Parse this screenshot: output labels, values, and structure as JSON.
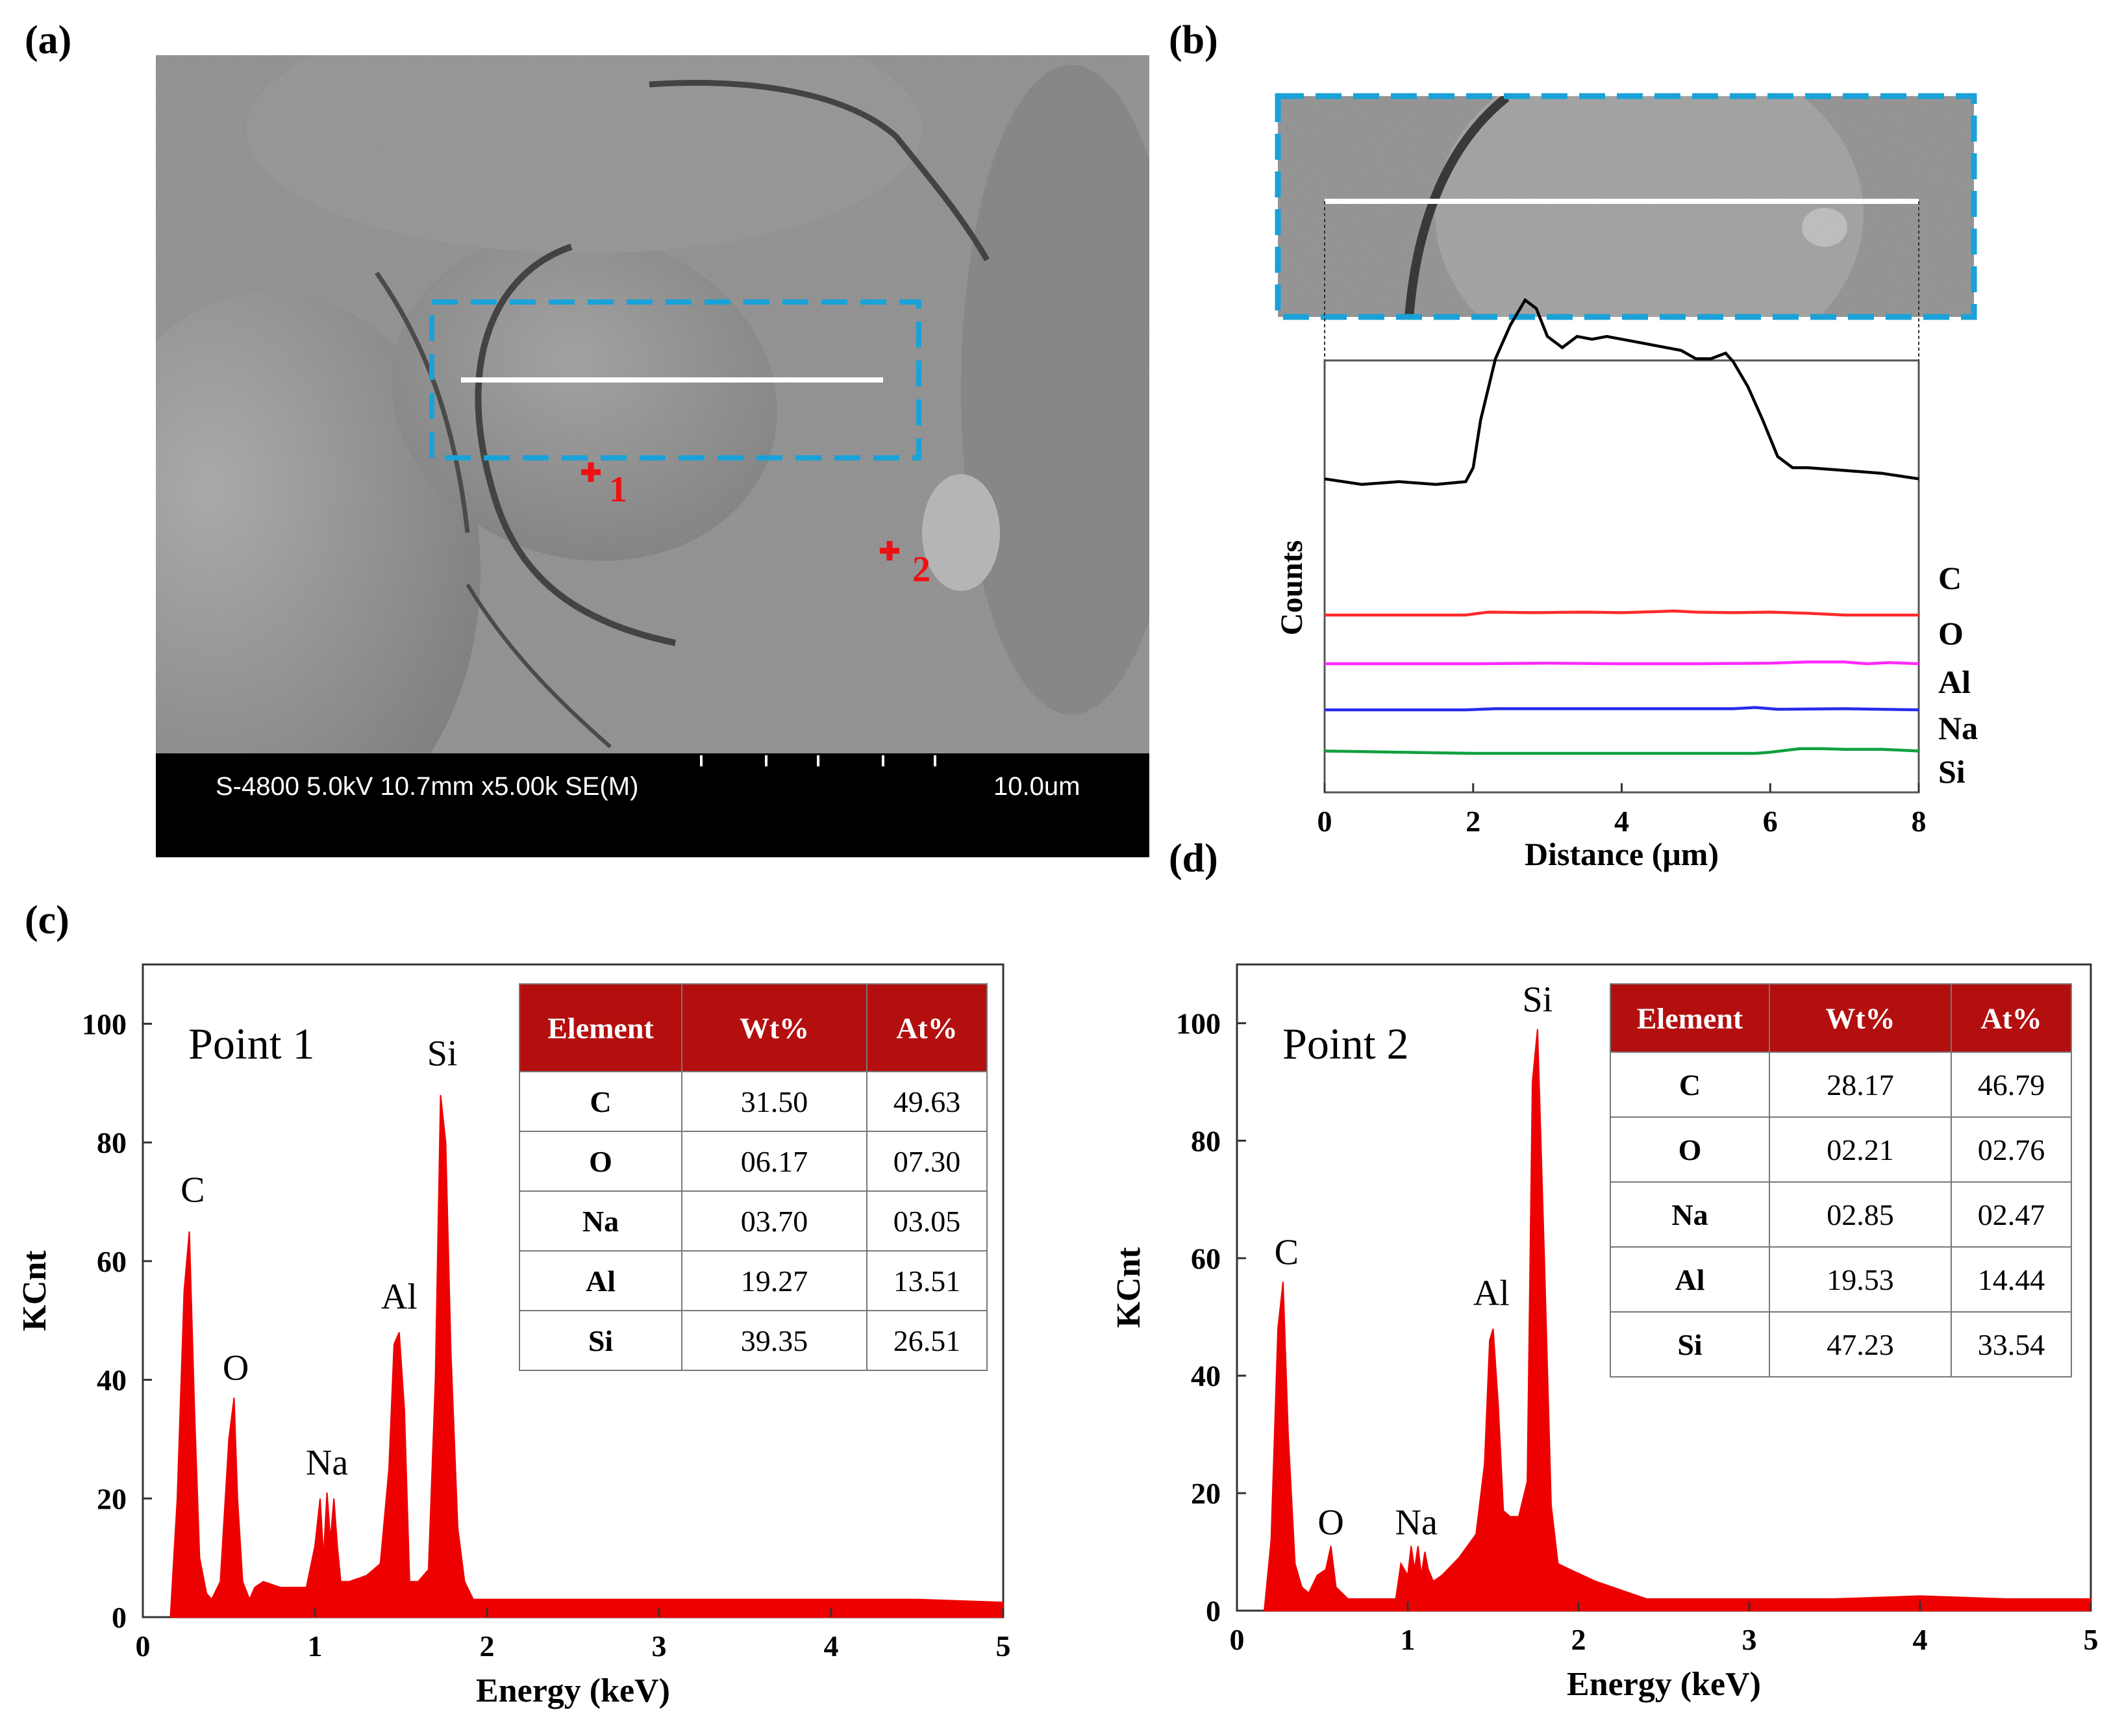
{
  "panels": {
    "a": {
      "label": "(a)",
      "sem_info": "S-4800 5.0kV 10.7mm x5.00k SE(M)",
      "scale_label": "10.0um",
      "points": [
        {
          "label": "1"
        },
        {
          "label": "2"
        }
      ]
    },
    "b": {
      "label": "(b)"
    },
    "c": {
      "label": "(c)"
    },
    "d": {
      "label": "(d)"
    }
  },
  "colors": {
    "spectrum_fill": "#ee0000",
    "table_header": "#b40f0f",
    "dashed_box": "#1aa2d8",
    "marker": "#ee1111",
    "C": "#000000",
    "O": "#ff2a2a",
    "Al": "#ff2aff",
    "Na": "#2a2aee",
    "Si": "#10a040"
  },
  "chart_data": [
    {
      "id": "b",
      "type": "line",
      "xlabel": "Distance (μm)",
      "ylabel": "Counts",
      "xlim": [
        0,
        8
      ],
      "xticks": [
        0,
        2,
        4,
        6,
        8
      ],
      "series_baseline_order": [
        "C",
        "O",
        "Al",
        "Na",
        "Si"
      ],
      "series": [
        {
          "name": "C",
          "x": [
            0,
            0.5,
            1,
            1.5,
            1.9,
            2.0,
            2.1,
            2.3,
            2.5,
            2.7,
            2.85,
            3.0,
            3.2,
            3.4,
            3.6,
            3.8,
            4.0,
            4.2,
            4.4,
            4.6,
            4.8,
            5.0,
            5.2,
            5.4,
            5.5,
            5.7,
            5.9,
            6.1,
            6.3,
            6.5,
            7.0,
            7.5,
            8.0
          ],
          "y": [
            0.29,
            0.27,
            0.28,
            0.27,
            0.28,
            0.33,
            0.5,
            0.72,
            0.84,
            0.93,
            0.9,
            0.8,
            0.76,
            0.8,
            0.79,
            0.8,
            0.79,
            0.78,
            0.77,
            0.76,
            0.75,
            0.72,
            0.72,
            0.74,
            0.71,
            0.62,
            0.5,
            0.37,
            0.33,
            0.33,
            0.32,
            0.31,
            0.29
          ]
        },
        {
          "name": "O",
          "x": [
            0,
            1.9,
            2.2,
            2.8,
            3.5,
            4.0,
            4.5,
            4.7,
            5.0,
            5.5,
            6.0,
            6.5,
            7.0,
            7.5,
            8.0
          ],
          "y": [
            0.0,
            0.0,
            0.05,
            0.04,
            0.05,
            0.04,
            0.06,
            0.07,
            0.05,
            0.04,
            0.05,
            0.03,
            0.0,
            0.0,
            0.0
          ]
        },
        {
          "name": "Al",
          "x": [
            0,
            1.0,
            2.0,
            3.0,
            4.0,
            5.0,
            6.0,
            6.5,
            7.0,
            7.3,
            7.6,
            8.0
          ],
          "y": [
            0.0,
            0.0,
            0.0,
            0.01,
            0.0,
            0.0,
            0.01,
            0.03,
            0.03,
            0.0,
            0.02,
            0.0
          ]
        },
        {
          "name": "Na",
          "x": [
            0,
            1.9,
            2.3,
            3.0,
            4.0,
            5.0,
            5.5,
            5.8,
            6.1,
            7.0,
            8.0
          ],
          "y": [
            0.0,
            0.0,
            0.02,
            0.02,
            0.02,
            0.02,
            0.02,
            0.04,
            0.01,
            0.02,
            0.0
          ]
        },
        {
          "name": "Si",
          "x": [
            0,
            0.5,
            1.0,
            1.5,
            2.0,
            3.0,
            4.0,
            5.0,
            5.8,
            6.0,
            6.2,
            6.4,
            6.7,
            7.0,
            7.5,
            8.0
          ],
          "y": [
            0.04,
            0.03,
            0.02,
            0.01,
            0.0,
            0.0,
            0.0,
            0.0,
            0.0,
            0.02,
            0.05,
            0.08,
            0.08,
            0.07,
            0.07,
            0.04
          ]
        }
      ]
    },
    {
      "id": "c",
      "type": "area",
      "title": "Point  1",
      "xlabel": "Energy (keV)",
      "ylabel": "KCnt",
      "xlim": [
        0,
        5
      ],
      "ylim": [
        0,
        110
      ],
      "xticks": [
        0,
        1,
        2,
        3,
        4,
        5
      ],
      "yticks": [
        0,
        20,
        40,
        60,
        80,
        100
      ],
      "peak_labels": [
        {
          "text": "C",
          "x": 0.29,
          "y": 70
        },
        {
          "text": "O",
          "x": 0.54,
          "y": 40
        },
        {
          "text": "Na",
          "x": 1.07,
          "y": 24
        },
        {
          "text": "Al",
          "x": 1.49,
          "y": 52
        },
        {
          "text": "Si",
          "x": 1.74,
          "y": 93
        }
      ],
      "x": [
        0.16,
        0.2,
        0.24,
        0.27,
        0.3,
        0.33,
        0.37,
        0.4,
        0.45,
        0.5,
        0.53,
        0.55,
        0.58,
        0.62,
        0.65,
        0.7,
        0.8,
        0.9,
        0.95,
        1.0,
        1.03,
        1.05,
        1.07,
        1.09,
        1.11,
        1.13,
        1.15,
        1.2,
        1.3,
        1.38,
        1.43,
        1.46,
        1.49,
        1.52,
        1.55,
        1.6,
        1.66,
        1.7,
        1.73,
        1.76,
        1.79,
        1.83,
        1.87,
        1.92,
        2.0,
        2.5,
        3.0,
        3.5,
        4.0,
        4.5,
        5.0
      ],
      "y": [
        0,
        20,
        55,
        65,
        35,
        10,
        4,
        3,
        6,
        30,
        37,
        20,
        6,
        3,
        5,
        6,
        5,
        5,
        5,
        12,
        20,
        10,
        21,
        13,
        20,
        12,
        6,
        6,
        7,
        9,
        25,
        46,
        48,
        35,
        6,
        6,
        8,
        40,
        88,
        80,
        45,
        15,
        6,
        3,
        3,
        3,
        3,
        3,
        3,
        3,
        2.5
      ],
      "table": {
        "headers": [
          "Element",
          "Wt%",
          "At%"
        ],
        "rows": [
          [
            "C",
            "31.50",
            "49.63"
          ],
          [
            "O",
            "06.17",
            "07.30"
          ],
          [
            "Na",
            "03.70",
            "03.05"
          ],
          [
            "Al",
            "19.27",
            "13.51"
          ],
          [
            "Si",
            "39.35",
            "26.51"
          ]
        ]
      }
    },
    {
      "id": "d",
      "type": "area",
      "title": "Point 2",
      "xlabel": "Energy (keV)",
      "ylabel": "KCnt",
      "xlim": [
        0,
        5
      ],
      "ylim": [
        0,
        110
      ],
      "xticks": [
        0,
        1,
        2,
        3,
        4,
        5
      ],
      "yticks": [
        0,
        20,
        40,
        60,
        80,
        100
      ],
      "peak_labels": [
        {
          "text": "C",
          "x": 0.29,
          "y": 59
        },
        {
          "text": "O",
          "x": 0.55,
          "y": 13
        },
        {
          "text": "Na",
          "x": 1.05,
          "y": 13
        },
        {
          "text": "Al",
          "x": 1.49,
          "y": 52
        },
        {
          "text": "Si",
          "x": 1.76,
          "y": 102
        }
      ],
      "x": [
        0.16,
        0.2,
        0.24,
        0.27,
        0.3,
        0.34,
        0.38,
        0.42,
        0.47,
        0.52,
        0.55,
        0.58,
        0.65,
        0.8,
        0.93,
        0.96,
        1.0,
        1.02,
        1.04,
        1.06,
        1.08,
        1.1,
        1.12,
        1.15,
        1.2,
        1.3,
        1.4,
        1.45,
        1.48,
        1.5,
        1.53,
        1.56,
        1.6,
        1.65,
        1.7,
        1.73,
        1.76,
        1.8,
        1.84,
        1.88,
        1.95,
        2.1,
        2.3,
        2.4,
        3.0,
        3.5,
        4.0,
        4.5,
        5.0
      ],
      "y": [
        0,
        12,
        48,
        56,
        30,
        8,
        4,
        3,
        6,
        7,
        11,
        4,
        2,
        2,
        2,
        8,
        6,
        11,
        7,
        11,
        6,
        10,
        7,
        5,
        6,
        9,
        13,
        25,
        46,
        48,
        35,
        17,
        16,
        16,
        22,
        90,
        99,
        60,
        18,
        8,
        7,
        5,
        3,
        2,
        2,
        2,
        2.5,
        2,
        2
      ],
      "table": {
        "headers": [
          "Element",
          "Wt%",
          "At%"
        ],
        "rows": [
          [
            "C",
            "28.17",
            "46.79"
          ],
          [
            "O",
            "02.21",
            "02.76"
          ],
          [
            "Na",
            "02.85",
            "02.47"
          ],
          [
            "Al",
            "19.53",
            "14.44"
          ],
          [
            "Si",
            "47.23",
            "33.54"
          ]
        ]
      }
    }
  ]
}
